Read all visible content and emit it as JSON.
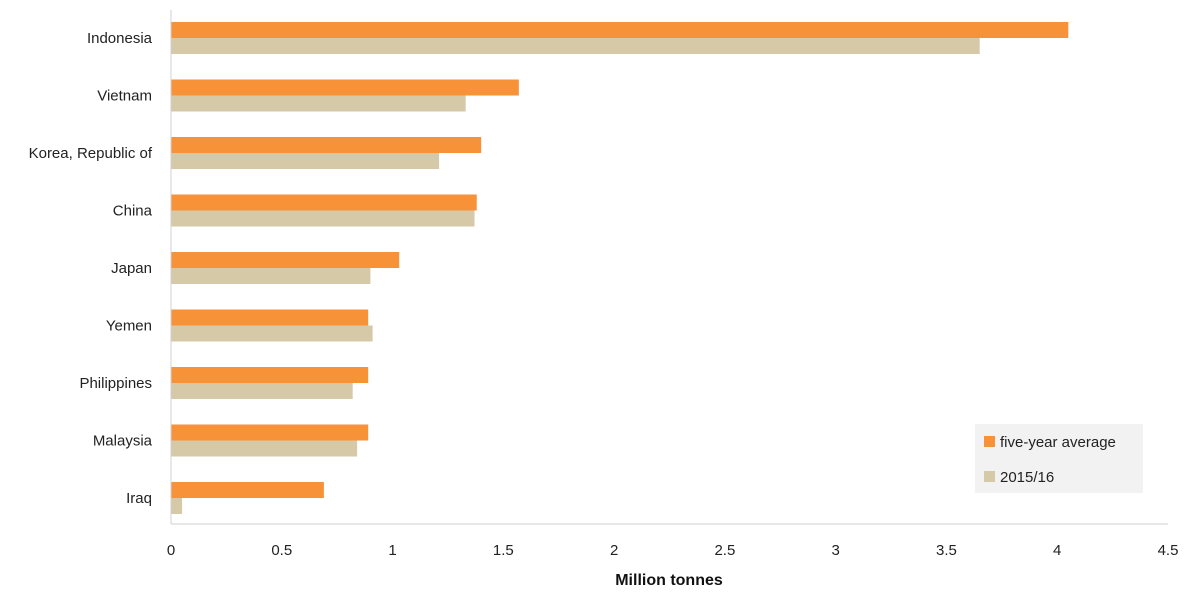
{
  "chart_data": {
    "type": "bar",
    "orientation": "horizontal",
    "categories": [
      "Indonesia",
      "Vietnam",
      "Korea, Republic of",
      "China",
      "Japan",
      "Yemen",
      "Philippines",
      "Malaysia",
      "Iraq"
    ],
    "series": [
      {
        "name": "five-year average",
        "color": "#f79239",
        "values": [
          4.05,
          1.57,
          1.4,
          1.38,
          1.03,
          0.89,
          0.89,
          0.89,
          0.69
        ]
      },
      {
        "name": "2015/16",
        "color": "#d5c9a8",
        "values": [
          3.65,
          1.33,
          1.21,
          1.37,
          0.9,
          0.91,
          0.82,
          0.84,
          0.05
        ]
      }
    ],
    "xlabel": "Million tonnes",
    "ylabel": "",
    "xlim": [
      0,
      4.5
    ],
    "ticks": [
      "0",
      "0.5",
      "1",
      "1.5",
      "2",
      "2.5",
      "3",
      "3.5",
      "4",
      "4.5"
    ],
    "tick_values": [
      0,
      0.5,
      1,
      1.5,
      2,
      2.5,
      3,
      3.5,
      4,
      4.5
    ],
    "grid": false,
    "legend_position": "bottom-right"
  }
}
